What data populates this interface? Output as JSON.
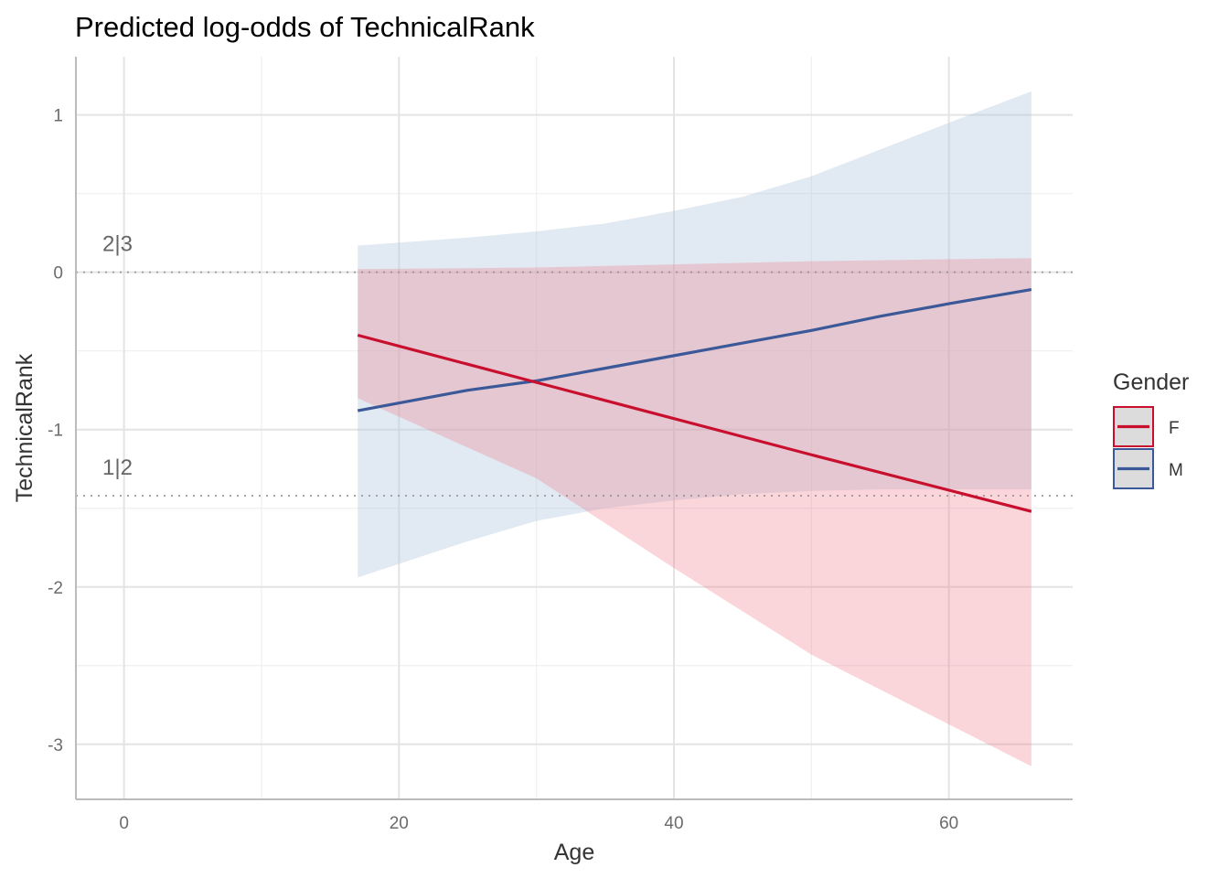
{
  "chart_data": {
    "type": "line",
    "title": "Predicted log-odds of TechnicalRank",
    "xlabel": "Age",
    "ylabel": "TechnicalRank",
    "xlim": [
      -3.5,
      69
    ],
    "ylim": [
      -3.35,
      1.37
    ],
    "x_ticks": [
      0,
      20,
      40,
      60
    ],
    "x_tick_labels": [
      "0",
      "20",
      "40",
      "60"
    ],
    "y_ticks": [
      1,
      0,
      -1,
      -2,
      -3
    ],
    "y_tick_labels": [
      "1",
      "0",
      "-1",
      "-2",
      "-3"
    ],
    "grid": true,
    "thresholds": [
      {
        "label": "2|3",
        "value": 0.0
      },
      {
        "label": "1|2",
        "value": -1.42
      }
    ],
    "legend": {
      "title": "Gender",
      "position": "right"
    },
    "series": [
      {
        "name": "F",
        "color": "#c8102e",
        "fill": "#f08090",
        "x": [
          17,
          30,
          40,
          50,
          66
        ],
        "y": [
          -0.4,
          -0.7,
          -0.93,
          -1.16,
          -1.52
        ],
        "lower": [
          -0.8,
          -1.31,
          -1.88,
          -2.43,
          -3.14
        ],
        "upper": [
          0.02,
          0.03,
          0.05,
          0.07,
          0.09
        ]
      },
      {
        "name": "M",
        "color": "#3b5998",
        "fill": "#b0c4de",
        "x": [
          17,
          25,
          30,
          35,
          40,
          45,
          50,
          55,
          60,
          66
        ],
        "y": [
          -0.88,
          -0.75,
          -0.69,
          -0.61,
          -0.53,
          -0.45,
          -0.37,
          -0.28,
          -0.2,
          -0.11
        ],
        "lower": [
          -1.94,
          -1.71,
          -1.58,
          -1.5,
          -1.45,
          -1.41,
          -1.39,
          -1.38,
          -1.38,
          -1.38
        ],
        "upper": [
          0.17,
          0.22,
          0.26,
          0.31,
          0.39,
          0.48,
          0.61,
          0.78,
          0.95,
          1.15
        ]
      }
    ]
  }
}
